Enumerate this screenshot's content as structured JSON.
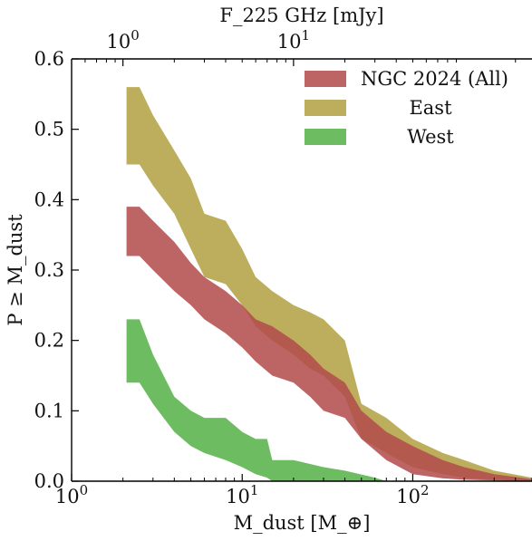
{
  "chart_data": {
    "type": "area",
    "title": "",
    "xlabel": "M_dust [M_⊕]",
    "ylabel": "P ≥ M_dust",
    "top_xlabel": "F_225 GHz [mJy]",
    "xscale": "log",
    "xlim": [
      1,
      500
    ],
    "ylim": [
      0,
      0.6
    ],
    "x_ticks": [
      {
        "value": 1,
        "base": "10",
        "exp": "0"
      },
      {
        "value": 10,
        "base": "10",
        "exp": "1"
      },
      {
        "value": 100,
        "base": "10",
        "exp": "2"
      }
    ],
    "top_ticks": [
      {
        "value": 2.0,
        "base": "10",
        "exp": "0"
      },
      {
        "value": 20.0,
        "base": "10",
        "exp": "1"
      }
    ],
    "y_ticks": [
      "0.0",
      "0.1",
      "0.2",
      "0.3",
      "0.4",
      "0.5",
      "0.6"
    ],
    "legend_position": "top-right",
    "grid": false,
    "series": [
      {
        "name": "NGC 2024 (All)",
        "color": "#b24a4a",
        "x": [
          2.1,
          2.5,
          3,
          4,
          5,
          6,
          8,
          10,
          12,
          15,
          20,
          25,
          30,
          40,
          50,
          70,
          100,
          150,
          200,
          300,
          500
        ],
        "upper": [
          0.39,
          0.39,
          0.37,
          0.34,
          0.31,
          0.29,
          0.27,
          0.25,
          0.23,
          0.22,
          0.2,
          0.18,
          0.16,
          0.14,
          0.1,
          0.07,
          0.05,
          0.03,
          0.02,
          0.01,
          0.003
        ],
        "lower": [
          0.32,
          0.32,
          0.3,
          0.27,
          0.25,
          0.23,
          0.21,
          0.19,
          0.17,
          0.15,
          0.14,
          0.12,
          0.1,
          0.09,
          0.06,
          0.03,
          0.01,
          0.004,
          0.002,
          0.001,
          0.0
        ]
      },
      {
        "name": "East",
        "color": "#b0a040",
        "x": [
          2.1,
          2.5,
          3,
          4,
          5,
          6,
          8,
          10,
          12,
          15,
          20,
          25,
          30,
          40,
          50,
          70,
          100,
          150,
          200,
          300,
          500
        ],
        "upper": [
          0.56,
          0.56,
          0.52,
          0.47,
          0.43,
          0.38,
          0.37,
          0.33,
          0.29,
          0.27,
          0.25,
          0.24,
          0.23,
          0.2,
          0.11,
          0.09,
          0.06,
          0.04,
          0.03,
          0.015,
          0.005
        ],
        "lower": [
          0.45,
          0.45,
          0.42,
          0.38,
          0.33,
          0.29,
          0.28,
          0.25,
          0.22,
          0.2,
          0.18,
          0.16,
          0.15,
          0.12,
          0.06,
          0.04,
          0.02,
          0.01,
          0.005,
          0.002,
          0.0
        ]
      },
      {
        "name": "West",
        "color": "#55b045",
        "x": [
          2.1,
          2.5,
          3,
          4,
          5,
          6,
          8,
          10,
          12,
          14,
          15,
          20,
          30,
          40,
          60,
          70
        ],
        "upper": [
          0.23,
          0.23,
          0.18,
          0.12,
          0.1,
          0.09,
          0.09,
          0.07,
          0.06,
          0.06,
          0.03,
          0.03,
          0.02,
          0.015,
          0.005,
          0.0
        ],
        "lower": [
          0.14,
          0.14,
          0.11,
          0.07,
          0.05,
          0.04,
          0.03,
          0.02,
          0.01,
          0.005,
          0.0,
          0.0,
          0.0,
          0.0,
          0.0,
          0.0
        ]
      }
    ]
  }
}
